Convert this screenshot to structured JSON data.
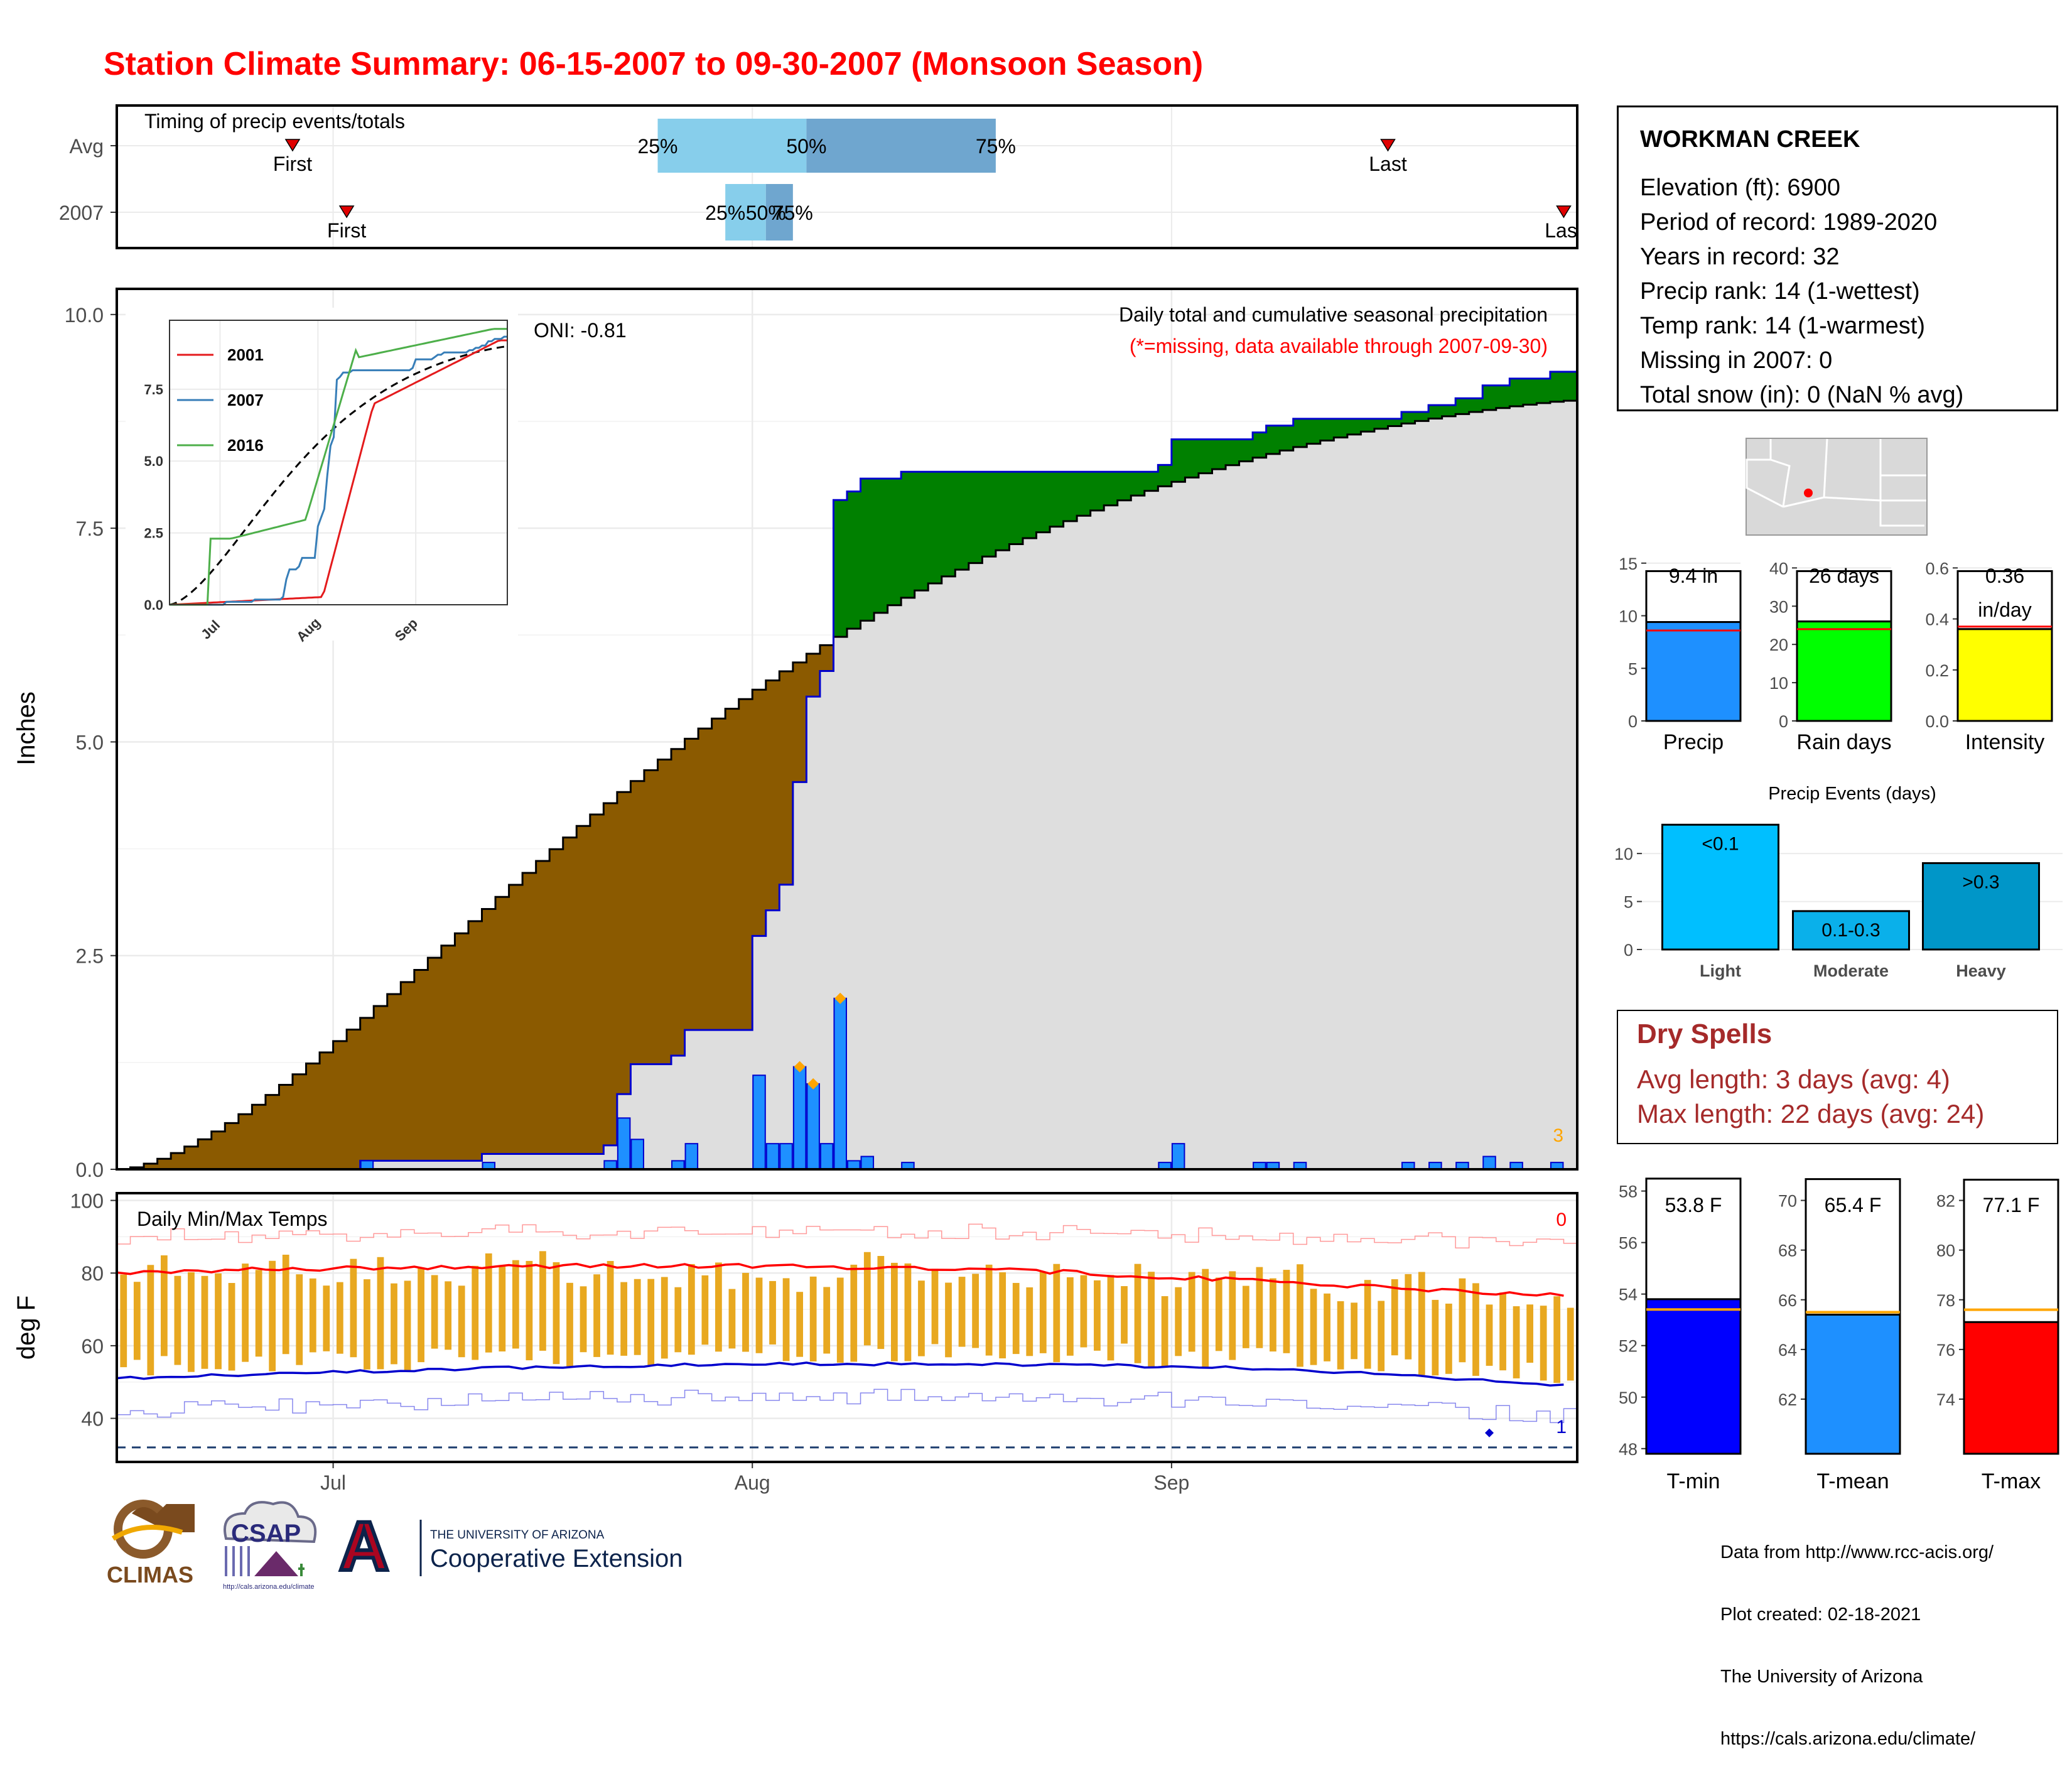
{
  "title": "Station Climate Summary: 06-15-2007 to 09-30-2007 (Monsoon Season)",
  "timing": {
    "label": "Timing of precip events/totals",
    "rows": [
      {
        "name": "Avg",
        "first": "06-28",
        "p25": "07-25",
        "p50": "08-05",
        "p75": "08-19",
        "last": "09-17",
        "first_label": "First",
        "last_label": "Last"
      },
      {
        "name": "2007",
        "first": "07-02",
        "p25": "07-30",
        "p50": "08-02",
        "p75": "08-04",
        "last": "09-30",
        "first_label": "First",
        "last_label": "Last"
      }
    ],
    "pct_labels": [
      "25%",
      "50%",
      "75%"
    ],
    "colors": {
      "light": "#87ceeb",
      "dark": "#6fa6cf",
      "marker": "#e00000"
    }
  },
  "info": {
    "station": "WORKMAN CREEK",
    "lines": [
      "Elevation (ft): 6900",
      "Period of record: 1989-2020",
      "Years in record: 32",
      "Precip rank: 14 (1-wettest)",
      "Temp rank: 14 (1-warmest)",
      "Missing in 2007: 0",
      "Total snow (in): 0 (NaN % avg)"
    ]
  },
  "precip_panel": {
    "ylabel": "Inches",
    "yticks": [
      "0.0",
      "2.5",
      "5.0",
      "7.5",
      "10.0"
    ],
    "ylim": [
      0,
      10.3
    ],
    "note1": "Daily total and cumulative seasonal precipitation",
    "note2": "(*=missing, data available through 2007-09-30)",
    "oni": "ONI: -0.81",
    "corner_count": "3",
    "colors": {
      "wet": "#008000",
      "dry": "#8b5a00",
      "avg_fill": "#dedede",
      "daily": "#1e90ff",
      "cum_line": "#0000cd",
      "extreme": "#ffa500"
    }
  },
  "inset": {
    "yticks": [
      "0.0",
      "2.5",
      "5.0",
      "7.5"
    ],
    "xticks": [
      "Jul",
      "Aug",
      "Sep"
    ],
    "legend": [
      {
        "name": "2001",
        "color": "#e41a1c"
      },
      {
        "name": "2007",
        "color": "#377eb8"
      },
      {
        "name": "2016",
        "color": "#4daf4a"
      }
    ]
  },
  "temp_panel": {
    "label": "Daily Min/Max Temps",
    "ylabel": "deg F",
    "yticks": [
      "40",
      "60",
      "80",
      "100"
    ],
    "ylim": [
      28,
      102
    ],
    "corner_top": "0",
    "corner_bottom": "1",
    "freeze_line": 32,
    "colors": {
      "bars": "#e8a820",
      "avg_max": "#ff0000",
      "avg_min": "#0000cd",
      "rec_max": "#ff9999",
      "rec_min": "#8888ee"
    }
  },
  "xaxis": {
    "start": "06-15",
    "end": "09-30",
    "ticks": [
      {
        "label": "Jul",
        "date": "07-01"
      },
      {
        "label": "Aug",
        "date": "08-01"
      },
      {
        "label": "Sep",
        "date": "09-01"
      }
    ]
  },
  "precip_bars": {
    "panels": [
      {
        "name": "Precip",
        "value": 9.4,
        "avg": 8.6,
        "label1": "9.4 in",
        "label2": "",
        "yticks": [
          "0",
          "5",
          "10",
          "15"
        ],
        "ymax": 16,
        "color": "#1e90ff"
      },
      {
        "name": "Rain days",
        "value": 26,
        "avg": 24,
        "label1": "26 days",
        "label2": "",
        "yticks": [
          "0",
          "10",
          "20",
          "30",
          "40"
        ],
        "ymax": 44,
        "color": "#00ff00"
      },
      {
        "name": "Intensity",
        "value": 0.36,
        "avg": 0.37,
        "label1": "0.36",
        "label2": "in/day",
        "yticks": [
          "0.0",
          "0.2",
          "0.4",
          "0.6"
        ],
        "ymax": 0.66,
        "color": "#ffff00"
      }
    ]
  },
  "events": {
    "title": "Precip Events (days)",
    "yticks": [
      "0",
      "5",
      "10"
    ],
    "ymax": 14,
    "categories": [
      "Light",
      "Moderate",
      "Heavy"
    ],
    "values": [
      13,
      4,
      9
    ],
    "labels": [
      "<0.1",
      "0.1-0.3",
      ">0.3"
    ],
    "colors": [
      "#00bfff",
      "#0ab0ea",
      "#0096c8"
    ]
  },
  "dry_spells": {
    "title": "Dry Spells",
    "avg_line": "Avg length: 3 days (avg: 4)",
    "max_line": "Max length: 22 days (avg: 24)",
    "color": "#a52a2a"
  },
  "temp_bars": {
    "panels": [
      {
        "name": "T-min",
        "value": 53.8,
        "avg": 53.4,
        "label": "53.8 F",
        "yticks": [
          "48",
          "50",
          "52",
          "54",
          "56",
          "58"
        ],
        "ymin": 47.8,
        "ymax": 58.6,
        "color": "#0000ff"
      },
      {
        "name": "T-mean",
        "value": 65.4,
        "avg": 65.5,
        "label": "65.4 F",
        "yticks": [
          "62",
          "64",
          "66",
          "68",
          "70"
        ],
        "ymin": 59.8,
        "ymax": 71.0,
        "color": "#1e90ff"
      },
      {
        "name": "T-max",
        "value": 77.1,
        "avg": 77.6,
        "label": "77.1 F",
        "yticks": [
          "74",
          "76",
          "78",
          "80",
          "82"
        ],
        "ymin": 71.8,
        "ymax": 83.0,
        "color": "#ff0000"
      }
    ],
    "avg_color": "#ffa500"
  },
  "footer": {
    "lines": [
      "Data from http://www.rcc-acis.org/",
      "Plot created: 02-18-2021",
      "The University of Arizona",
      "https://cals.arizona.edu/climate/"
    ],
    "logos": {
      "climas": "CLIMAS",
      "csap": "CSAP",
      "csap_url": "http://cals.arizona.edu/climate",
      "ua_small": "THE UNIVERSITY OF ARIZONA",
      "ua_big": "Cooperative Extension",
      "ua_letter": "A"
    }
  },
  "map_marker_color": "#ff0000"
}
